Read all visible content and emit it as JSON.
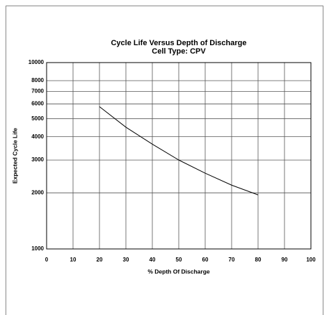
{
  "chart_data": {
    "type": "line",
    "title": "Cycle Life Versus Depth of Discharge",
    "subtitle": "Cell Type: CPV",
    "x_label": "% Depth Of Discharge",
    "y_label": "Expected Cycle Life",
    "x": [
      20,
      30,
      40,
      50,
      60,
      70,
      80
    ],
    "series": [
      {
        "name": "CPV",
        "color": "#000000",
        "values": [
          5800,
          4500,
          3650,
          3000,
          2550,
          2200,
          1950
        ]
      }
    ],
    "xlim": [
      0,
      100
    ],
    "xticks": [
      0,
      10,
      20,
      30,
      40,
      50,
      60,
      70,
      80,
      90,
      100
    ],
    "ylim": [
      1000,
      10000
    ],
    "yticks": [
      1000,
      2000,
      3000,
      4000,
      5000,
      6000,
      7000,
      8000,
      10000
    ],
    "yscale": "log",
    "grid": true
  }
}
